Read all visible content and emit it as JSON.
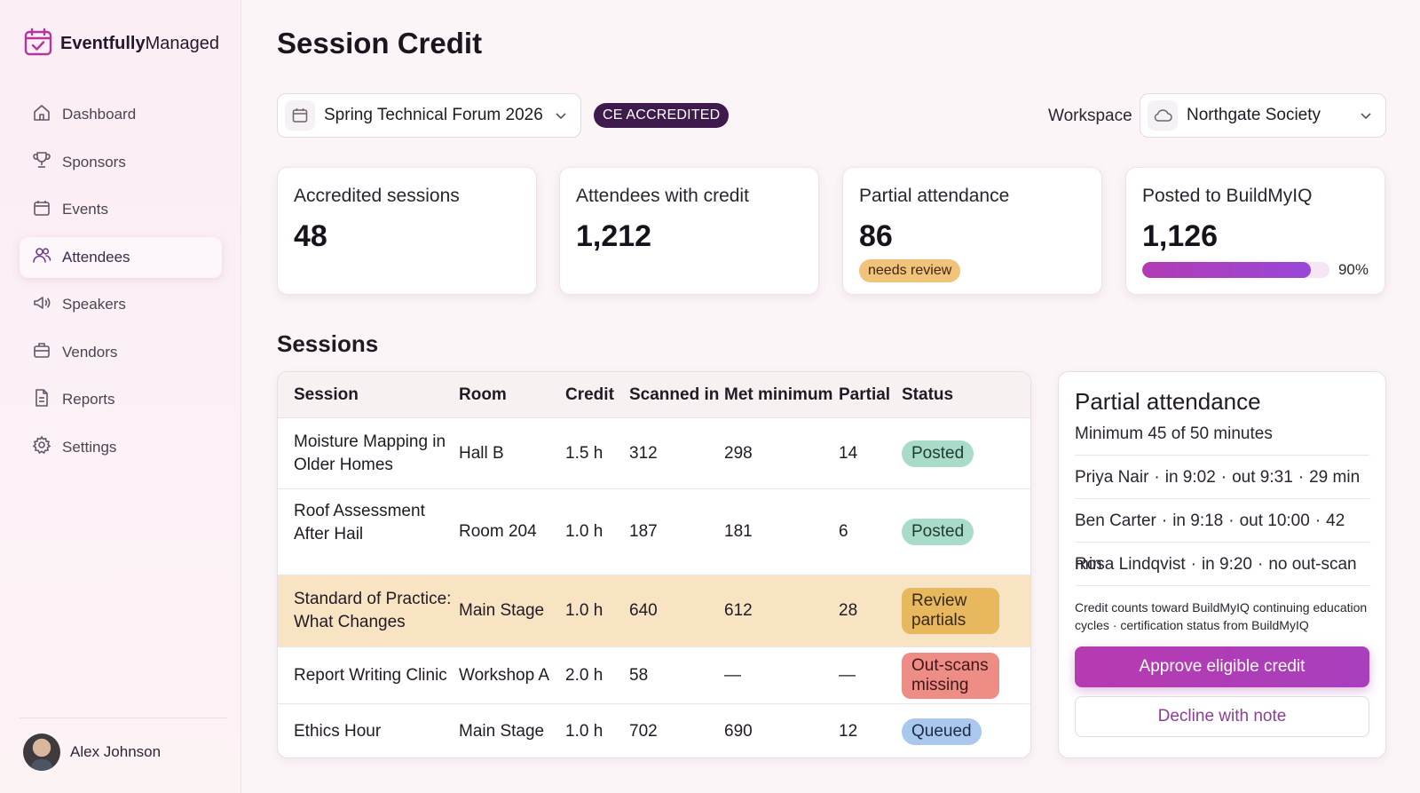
{
  "brand": {
    "name_bold": "Eventfully",
    "name_rest": "Managed",
    "logo_icon": "calendar-check-icon"
  },
  "nav": [
    {
      "label": "Dashboard",
      "icon": "home-icon",
      "active": false
    },
    {
      "label": "Sponsors",
      "icon": "trophy-icon",
      "active": false
    },
    {
      "label": "Events",
      "icon": "calendar-icon",
      "active": false
    },
    {
      "label": "Attendees",
      "icon": "users-icon",
      "active": true
    },
    {
      "label": "Speakers",
      "icon": "megaphone-icon",
      "active": false
    },
    {
      "label": "Vendors",
      "icon": "briefcase-icon",
      "active": false
    },
    {
      "label": "Reports",
      "icon": "document-icon",
      "active": false
    },
    {
      "label": "Settings",
      "icon": "gear-icon",
      "active": false
    }
  ],
  "user": {
    "name": "Alex Johnson"
  },
  "page": {
    "title": "Session Credit"
  },
  "event_select": {
    "value": "Spring Technical Forum 2026",
    "icon": "calendar-icon"
  },
  "ce_badge": "CE ACCREDITED",
  "workspace": {
    "label": "Workspace",
    "value": "Northgate Society",
    "icon": "cloud-icon"
  },
  "stats": [
    {
      "label": "Accredited sessions",
      "value": "48"
    },
    {
      "label": "Attendees with credit",
      "value": "1,212"
    },
    {
      "label": "Partial attendance",
      "value": "86",
      "badge": "needs review"
    },
    {
      "label": "Posted to BuildMyIQ",
      "value": "1,126",
      "progress": 0.9,
      "progress_label": "90%"
    }
  ],
  "sessions": {
    "title": "Sessions",
    "columns": [
      "Session",
      "Room",
      "Credit",
      "Scanned in",
      "Met minimum",
      "Partial",
      "Status"
    ],
    "rows": [
      {
        "session": "Moisture Mapping in Older Homes",
        "room": "Hall B",
        "credit": "1.5 h",
        "scanned": "312",
        "met": "298",
        "partial": "14",
        "status": "Posted",
        "status_type": "posted"
      },
      {
        "session": "Roof Assessment After Hail",
        "room": "Room 204",
        "credit": "1.0 h",
        "scanned": "187",
        "met": "181",
        "partial": "6",
        "status": "Posted",
        "status_type": "posted"
      },
      {
        "session": "Standard of Practice: What Changes",
        "room": "Main Stage",
        "credit": "1.0 h",
        "scanned": "640",
        "met": "612",
        "partial": "28",
        "status": "Review partials",
        "status_type": "review"
      },
      {
        "session": "Report Writing Clinic",
        "room": "Workshop A",
        "credit": "2.0 h",
        "scanned": "58",
        "met": "—",
        "partial": "—",
        "status": "Out-scans missing",
        "status_type": "missing"
      },
      {
        "session": "Ethics Hour",
        "room": "Main Stage",
        "credit": "1.0 h",
        "scanned": "702",
        "met": "690",
        "partial": "12",
        "status": "Queued",
        "status_type": "queued"
      }
    ]
  },
  "partial_panel": {
    "title": "Partial attendance",
    "subtitle": "Minimum 45 of 50 minutes",
    "entries": [
      {
        "name": "Priya Nair",
        "in": "in 9:02",
        "out": "out 9:31",
        "duration": "29 min"
      },
      {
        "name": "Ben Carter",
        "in": "in 9:18",
        "out": "out 10:00",
        "duration": "42 min"
      },
      {
        "name": "Rosa Lindqvist",
        "in": "in 9:20",
        "out": "no out-scan",
        "duration": ""
      }
    ],
    "note": "Credit counts toward BuildMyIQ continuing education cycles · certification status from BuildMyIQ",
    "approve_label": "Approve eligible credit",
    "decline_label": "Decline with note"
  }
}
